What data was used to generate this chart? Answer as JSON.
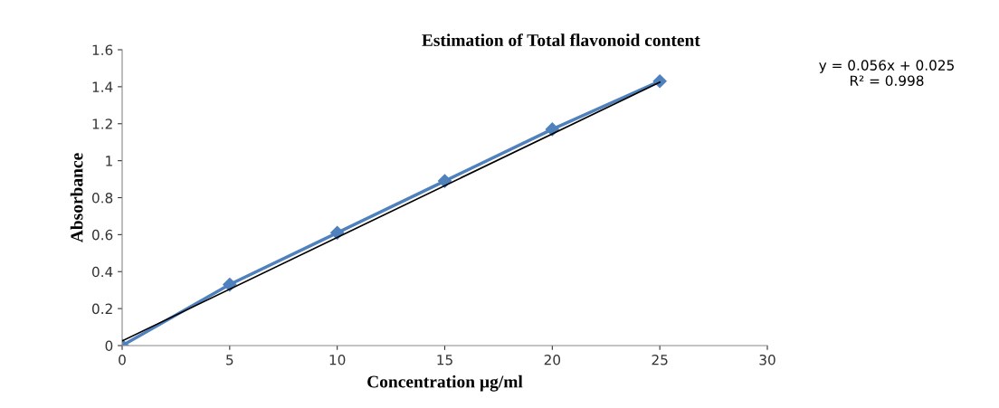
{
  "chart_data": {
    "type": "line",
    "title": "Estimation of Total flavonoid content",
    "xlabel": "Concentration µg/ml",
    "ylabel": "Absorbance",
    "x": [
      0,
      5,
      10,
      15,
      20,
      25
    ],
    "series": [
      {
        "color": "#4f81bd",
        "values": [
          0,
          0.33,
          0.61,
          0.89,
          1.17,
          1.43
        ],
        "marker": "diamond"
      },
      {
        "type": "line",
        "color": "#000000",
        "x": [
          0,
          25
        ],
        "values": [
          0.025,
          1.425
        ]
      }
    ],
    "annotations": [
      "y = 0.056x + 0.025\nR² = 0.998"
    ],
    "xlim": [
      0,
      30
    ],
    "xticks": [
      0,
      5,
      10,
      15,
      20,
      25,
      30
    ],
    "ylim": [
      0,
      1.6
    ],
    "yticks": [
      0,
      0.2,
      0.4,
      0.6,
      0.8,
      1,
      1.2,
      1.4,
      1.6
    ],
    "grid": false,
    "legend": false
  }
}
